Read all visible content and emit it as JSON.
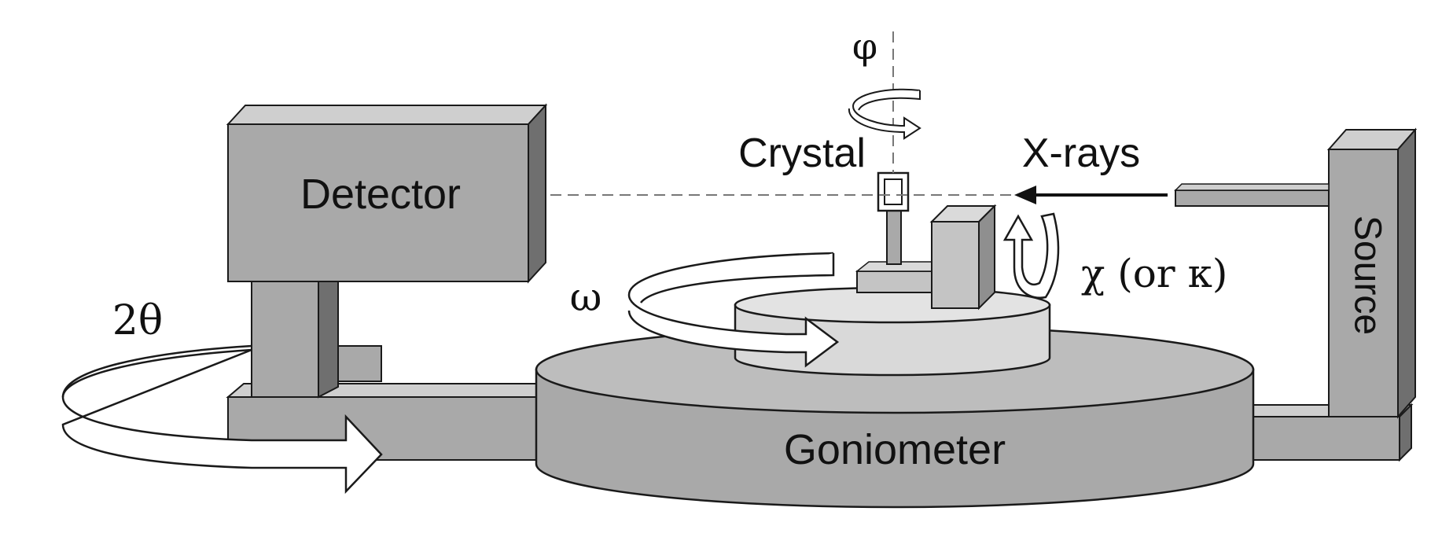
{
  "labels": {
    "phi": "φ",
    "crystal": "Crystal",
    "xrays": "X-rays",
    "detector": "Detector",
    "source": "Source",
    "omega": "ω",
    "two_theta": "2θ",
    "chi": "χ (or κ)",
    "goniometer": "Goniometer"
  },
  "colors": {
    "box_front": "#a9a9a9",
    "box_side": "#6f6f6f",
    "box_top": "#cfcfcf",
    "stage_light": "#d9d9d9",
    "outline": "#1a1a1a",
    "arrow_fill": "#ffffff"
  }
}
